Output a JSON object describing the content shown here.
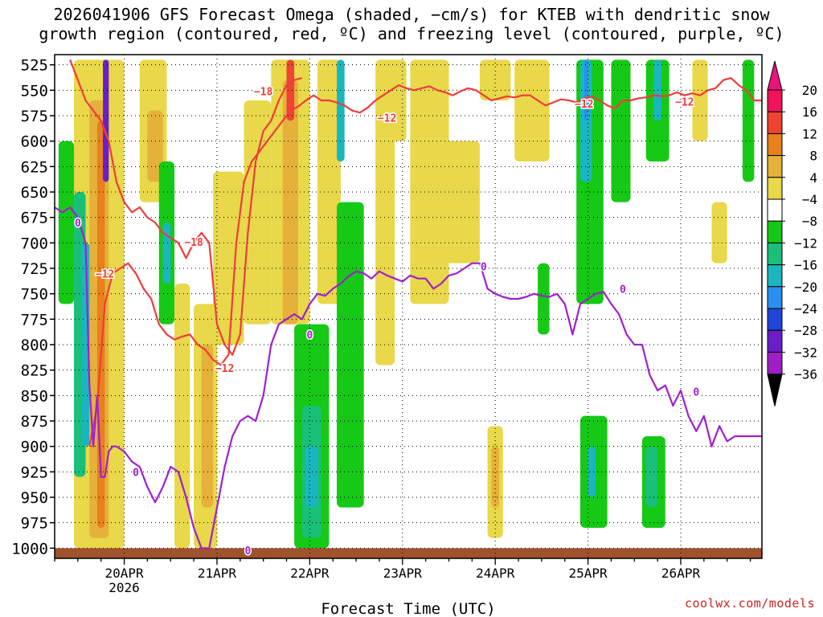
{
  "title": {
    "line1": "2026041906 GFS Forecast Omega (shaded, −cm/s) for KTEB with dendritic snow",
    "line2": "growth region (contoured, red, ºC) and freezing level (contoured, purple, ºC)"
  },
  "credit": "coolwx.com/models",
  "chart_data": {
    "type": "heatmap",
    "title": "2026041906 GFS Forecast Omega (shaded, −cm/s) for KTEB with dendritic snow growth region (contoured, red, ºC) and freezing level (contoured, purple, ºC)",
    "xlabel": "Forecast Time (UTC)",
    "ylabel": "",
    "x_unit": "hours since 2026-04-19 06Z",
    "xlim": [
      0,
      183
    ],
    "y_unit": "hPa",
    "ylim": [
      1010,
      515
    ],
    "y_ticks": [
      525,
      550,
      575,
      600,
      625,
      650,
      675,
      700,
      725,
      750,
      775,
      800,
      825,
      850,
      875,
      900,
      925,
      950,
      975,
      1000
    ],
    "x_ticks": [
      {
        "hour": 18,
        "label": "20APR",
        "sublabel": "2026"
      },
      {
        "hour": 42,
        "label": "21APR"
      },
      {
        "hour": 66,
        "label": "22APR"
      },
      {
        "hour": 90,
        "label": "23APR"
      },
      {
        "hour": 114,
        "label": "24APR"
      },
      {
        "hour": 138,
        "label": "25APR"
      },
      {
        "hour": 162,
        "label": "26APR"
      }
    ],
    "colorbar": {
      "levels": [
        20,
        16,
        12,
        8,
        4,
        -4,
        -8,
        -12,
        -16,
        -20,
        -24,
        -28,
        -32,
        -36
      ],
      "colors": [
        "#f0135a",
        "#ee4431",
        "#e8801e",
        "#e5b13a",
        "#e8d84a",
        "#ffffff",
        "#16c916",
        "#1abf78",
        "#1ab6c0",
        "#2a8ff0",
        "#2045d8",
        "#6a1ec8",
        "#a01ec8",
        "#a8a8a8"
      ],
      "top_color": "#e8157a",
      "bottom_color": "#000000"
    },
    "omega_regions": [
      {
        "x": [
          5,
          18
        ],
        "p": [
          520,
          1000
        ],
        "value": 5
      },
      {
        "x": [
          9,
          14
        ],
        "p": [
          560,
          990
        ],
        "value": 10
      },
      {
        "x": [
          11,
          13
        ],
        "p": [
          580,
          980
        ],
        "value": 14
      },
      {
        "x": [
          1,
          5
        ],
        "p": [
          600,
          760
        ],
        "value": -7
      },
      {
        "x": [
          5,
          8
        ],
        "p": [
          650,
          930
        ],
        "value": -10
      },
      {
        "x": [
          7,
          9
        ],
        "p": [
          700,
          900
        ],
        "value": -14
      },
      {
        "x": [
          12.5,
          14
        ],
        "p": [
          520,
          640
        ],
        "value": -26
      },
      {
        "x": [
          22,
          29
        ],
        "p": [
          520,
          660
        ],
        "value": 6
      },
      {
        "x": [
          24,
          28
        ],
        "p": [
          570,
          640
        ],
        "value": 10
      },
      {
        "x": [
          27,
          31
        ],
        "p": [
          620,
          780
        ],
        "value": -8
      },
      {
        "x": [
          28,
          30
        ],
        "p": [
          680,
          740
        ],
        "value": -13
      },
      {
        "x": [
          31,
          35
        ],
        "p": [
          740,
          1000
        ],
        "value": 5
      },
      {
        "x": [
          36,
          42
        ],
        "p": [
          760,
          1000
        ],
        "value": 6
      },
      {
        "x": [
          38,
          41
        ],
        "p": [
          800,
          960
        ],
        "value": 10
      },
      {
        "x": [
          41,
          49
        ],
        "p": [
          630,
          800
        ],
        "value": 5
      },
      {
        "x": [
          49,
          56
        ],
        "p": [
          560,
          780
        ],
        "value": 6
      },
      {
        "x": [
          56,
          66
        ],
        "p": [
          520,
          780
        ],
        "value": 6
      },
      {
        "x": [
          59,
          63
        ],
        "p": [
          540,
          780
        ],
        "value": 10
      },
      {
        "x": [
          60,
          62
        ],
        "p": [
          520,
          580
        ],
        "value": 18
      },
      {
        "x": [
          62,
          71
        ],
        "p": [
          780,
          1000
        ],
        "value": -7
      },
      {
        "x": [
          64,
          69
        ],
        "p": [
          860,
          990
        ],
        "value": -12
      },
      {
        "x": [
          65,
          68
        ],
        "p": [
          900,
          960
        ],
        "value": -16
      },
      {
        "x": [
          68,
          74
        ],
        "p": [
          520,
          760
        ],
        "value": 5
      },
      {
        "x": [
          73,
          75
        ],
        "p": [
          520,
          620
        ],
        "value": -14
      },
      {
        "x": [
          73,
          80
        ],
        "p": [
          660,
          960
        ],
        "value": -7
      },
      {
        "x": [
          83,
          88
        ],
        "p": [
          520,
          820
        ],
        "value": 5
      },
      {
        "x": [
          86,
          91
        ],
        "p": [
          520,
          600
        ],
        "value": 5
      },
      {
        "x": [
          92,
          102
        ],
        "p": [
          520,
          760
        ],
        "value": 5
      },
      {
        "x": [
          101,
          110
        ],
        "p": [
          600,
          720
        ],
        "value": 5
      },
      {
        "x": [
          112,
          116
        ],
        "p": [
          880,
          990
        ],
        "value": 6
      },
      {
        "x": [
          113,
          115
        ],
        "p": [
          900,
          960
        ],
        "value": 10
      },
      {
        "x": [
          110,
          118
        ],
        "p": [
          520,
          560
        ],
        "value": 5
      },
      {
        "x": [
          119,
          128
        ],
        "p": [
          520,
          620
        ],
        "value": 5
      },
      {
        "x": [
          125,
          128
        ],
        "p": [
          720,
          790
        ],
        "value": -7
      },
      {
        "x": [
          135,
          142
        ],
        "p": [
          520,
          760
        ],
        "value": -7
      },
      {
        "x": [
          136,
          139
        ],
        "p": [
          520,
          640
        ],
        "value": -13
      },
      {
        "x": [
          137,
          138
        ],
        "p": [
          520,
          580
        ],
        "value": -20
      },
      {
        "x": [
          136,
          143
        ],
        "p": [
          870,
          980
        ],
        "value": -7
      },
      {
        "x": [
          138,
          140
        ],
        "p": [
          900,
          950
        ],
        "value": -13
      },
      {
        "x": [
          144,
          149
        ],
        "p": [
          520,
          660
        ],
        "value": -7
      },
      {
        "x": [
          153,
          159
        ],
        "p": [
          520,
          620
        ],
        "value": -8
      },
      {
        "x": [
          155,
          157
        ],
        "p": [
          520,
          580
        ],
        "value": -14
      },
      {
        "x": [
          152,
          158
        ],
        "p": [
          890,
          980
        ],
        "value": -7
      },
      {
        "x": [
          153,
          156
        ],
        "p": [
          900,
          960
        ],
        "value": -12
      },
      {
        "x": [
          165,
          169
        ],
        "p": [
          520,
          600
        ],
        "value": 5
      },
      {
        "x": [
          170,
          174
        ],
        "p": [
          660,
          720
        ],
        "value": 5
      },
      {
        "x": [
          178,
          181
        ],
        "p": [
          520,
          640
        ],
        "value": -7
      }
    ],
    "series": [
      {
        "name": "dendritic snow growth region",
        "color": "#f03c3c",
        "contours": [
          {
            "level": -18,
            "x": [
              4,
              6,
              8,
              10,
              12,
              14,
              16,
              18,
              20,
              22,
              24,
              26,
              28,
              30,
              32,
              34,
              36,
              38,
              40,
              42,
              44,
              46,
              48,
              50,
              52,
              54,
              56,
              58,
              60,
              62,
              64
            ],
            "p": [
              520,
              540,
              560,
              570,
              580,
              600,
              640,
              660,
              670,
              665,
              675,
              680,
              690,
              695,
              700,
              715,
              700,
              690,
              700,
              780,
              800,
              810,
              790,
              690,
              620,
              590,
              580,
              560,
              545,
              540,
              538
            ]
          },
          {
            "level": -12,
            "x": [
              9,
              11,
              13,
              15,
              17,
              19,
              21,
              23,
              25,
              27,
              29,
              31,
              33,
              35,
              37,
              39,
              41,
              43,
              45,
              47,
              49,
              51,
              53,
              55,
              57,
              59,
              61,
              63,
              65,
              67,
              69,
              71,
              73,
              75,
              77,
              79,
              81,
              83,
              85,
              87,
              89,
              91,
              93,
              95,
              97,
              99,
              101,
              103,
              105,
              107,
              109,
              111,
              113,
              115,
              117,
              119,
              121,
              123,
              125,
              127,
              129,
              131,
              133,
              135,
              137,
              139,
              141,
              143,
              145,
              147,
              149,
              151,
              153,
              155,
              157,
              159,
              161,
              163,
              165,
              167,
              169,
              171,
              173,
              175,
              177,
              179,
              181,
              183
            ],
            "p": [
              900,
              860,
              760,
              730,
              725,
              720,
              730,
              745,
              755,
              780,
              790,
              795,
              792,
              790,
              800,
              805,
              815,
              820,
              810,
              700,
              640,
              620,
              610,
              600,
              590,
              580,
              570,
              566,
              560,
              555,
              560,
              560,
              562,
              565,
              570,
              572,
              567,
              560,
              555,
              550,
              545,
              548,
              550,
              548,
              546,
              550,
              552,
              555,
              551,
              548,
              550,
              555,
              560,
              558,
              556,
              557,
              555,
              555,
              560,
              565,
              562,
              559,
              560,
              562,
              558,
              556,
              560,
              565,
              568,
              560,
              560,
              558,
              557,
              555,
              556,
              555,
              552,
              555,
              553,
              555,
              550,
              548,
              540,
              538,
              545,
              550,
              560,
              560
            ]
          }
        ]
      },
      {
        "name": "freezing level",
        "color": "#a020d0",
        "contours": [
          {
            "level": 0,
            "x": [
              0,
              2,
              4,
              6,
              8,
              9,
              10,
              11,
              12,
              13,
              14,
              15,
              16,
              18,
              20,
              22,
              24,
              26,
              28,
              30,
              32,
              34,
              36,
              38,
              40,
              42,
              44,
              46,
              48,
              50,
              52,
              54,
              56,
              58,
              60,
              62,
              64,
              66,
              68,
              70,
              72,
              74,
              76,
              78,
              80,
              82,
              84,
              86,
              88,
              90,
              92,
              94,
              96,
              98,
              100,
              102,
              104,
              106,
              108,
              110,
              112,
              114,
              116,
              118,
              120,
              122,
              124,
              126,
              128,
              130,
              132,
              134,
              136,
              138,
              140,
              142,
              144,
              146,
              148,
              150,
              152,
              154,
              156,
              158,
              160,
              162,
              164,
              166,
              168,
              170,
              172,
              174,
              176,
              178,
              180,
              182,
              183
            ],
            "p": [
              665,
              670,
              665,
              675,
              700,
              840,
              900,
              850,
              930,
              930,
              905,
              900,
              900,
              905,
              915,
              920,
              940,
              955,
              940,
              920,
              925,
              950,
              980,
              1000,
              1000,
              960,
              920,
              890,
              875,
              870,
              875,
              850,
              800,
              780,
              775,
              770,
              775,
              760,
              750,
              752,
              745,
              740,
              733,
              728,
              730,
              735,
              728,
              732,
              735,
              738,
              732,
              735,
              735,
              745,
              740,
              732,
              730,
              725,
              720,
              720,
              745,
              750,
              753,
              755,
              755,
              753,
              750,
              752,
              753,
              750,
              760,
              790,
              760,
              755,
              750,
              748,
              760,
              770,
              790,
              800,
              800,
              830,
              845,
              840,
              860,
              845,
              870,
              885,
              870,
              900,
              880,
              895,
              890,
              890,
              890,
              890,
              890
            ]
          }
        ]
      }
    ],
    "contour_labels": [
      {
        "text": "−18",
        "x": 54,
        "p": 551,
        "series": "dendritic snow growth region"
      },
      {
        "text": "−18",
        "x": 36,
        "p": 699,
        "series": "dendritic snow growth region"
      },
      {
        "text": "−12",
        "x": 86,
        "p": 577,
        "series": "dendritic snow growth region"
      },
      {
        "text": "−12",
        "x": 137,
        "p": 563,
        "series": "dendritic snow growth region"
      },
      {
        "text": "−12",
        "x": 163,
        "p": 561,
        "series": "dendritic snow growth region"
      },
      {
        "text": "−12",
        "x": 13,
        "p": 730,
        "series": "dendritic snow growth region"
      },
      {
        "text": "−12",
        "x": 44,
        "p": 823,
        "series": "dendritic snow growth region"
      },
      {
        "text": "0",
        "x": 6,
        "p": 680,
        "series": "freezing level"
      },
      {
        "text": "0",
        "x": 21,
        "p": 925,
        "series": "freezing level"
      },
      {
        "text": "0",
        "x": 50,
        "p": 1002,
        "series": "freezing level"
      },
      {
        "text": "0",
        "x": 66,
        "p": 790,
        "series": "freezing level"
      },
      {
        "text": "0",
        "x": 111,
        "p": 723,
        "series": "freezing level"
      },
      {
        "text": "0",
        "x": 147,
        "p": 745,
        "series": "freezing level"
      },
      {
        "text": "0",
        "x": 166,
        "p": 846,
        "series": "freezing level"
      }
    ],
    "terrain": {
      "name": "surface",
      "color": "#a0522d",
      "p_top": 1000,
      "p_bottom": 1010
    }
  }
}
